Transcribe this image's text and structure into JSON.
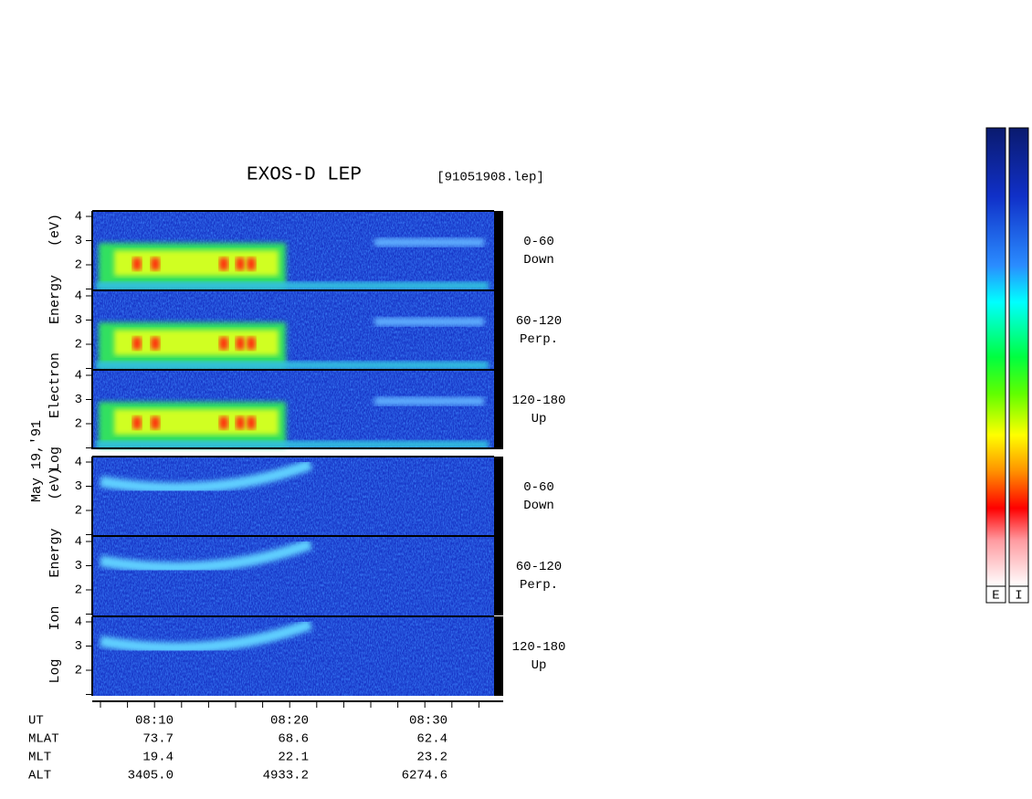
{
  "header": {
    "title": "EXOS-D LEP",
    "file": "[91051908.lep]"
  },
  "electron_axis_label": "Log Electron Energy (eV)",
  "ion_axis_label": "Log Ion Energy (eV)",
  "date": "May 19,'91",
  "panels": [
    {
      "pitch": "0-60",
      "direction": "Down",
      "yticks": [
        2,
        3,
        4
      ]
    },
    {
      "pitch": "60-120",
      "direction": "Perp.",
      "yticks": [
        2,
        3,
        4
      ]
    },
    {
      "pitch": "120-180",
      "direction": "Up",
      "yticks": [
        2,
        3,
        4
      ]
    },
    {
      "pitch": "0-60",
      "direction": "Down",
      "yticks": [
        2,
        3,
        4
      ]
    },
    {
      "pitch": "60-120",
      "direction": "Perp.",
      "yticks": [
        2,
        3,
        4
      ]
    },
    {
      "pitch": "120-180",
      "direction": "Up",
      "yticks": [
        2,
        3,
        4
      ]
    }
  ],
  "ephemeris": {
    "labels": [
      "UT",
      "MLAT",
      "MLT",
      "ALT"
    ],
    "columns": [
      [
        "08:10",
        "73.7",
        "19.4",
        "3405.0"
      ],
      [
        "08:20",
        "68.6",
        "22.1",
        "4933.2"
      ],
      [
        "08:30",
        "62.4",
        "23.2",
        "6274.6"
      ]
    ]
  },
  "colorbars": [
    "E",
    "I"
  ]
}
